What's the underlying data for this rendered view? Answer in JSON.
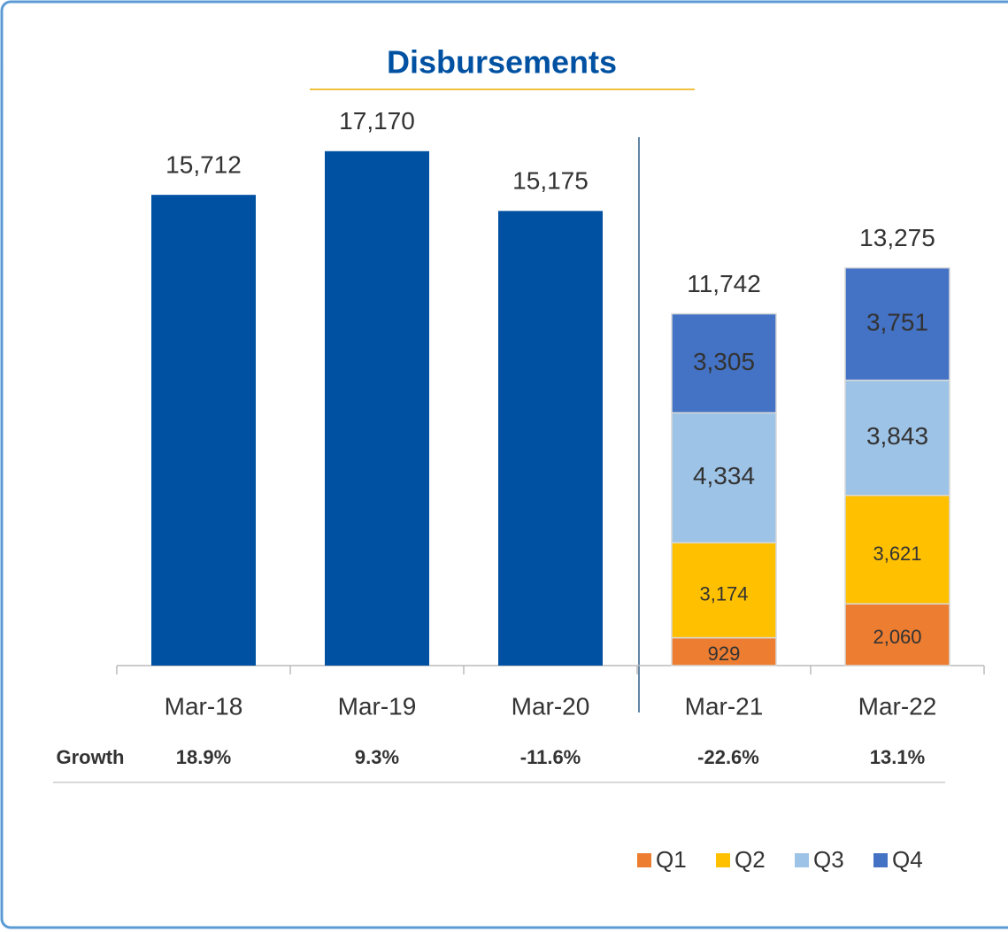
{
  "chart_data": {
    "type": "bar",
    "title": "Disbursements",
    "categories": [
      "Mar-18",
      "Mar-19",
      "Mar-20",
      "Mar-21",
      "Mar-22"
    ],
    "totals": [
      15712,
      17170,
      15175,
      11742,
      13275
    ],
    "totals_labels": [
      "15,712",
      "17,170",
      "15,175",
      "11,742",
      "13,275"
    ],
    "total_color": "#0051a2",
    "series": [
      {
        "name": "Q1",
        "color": "#ed7d31",
        "values": [
          null,
          null,
          null,
          929,
          2060
        ],
        "value_labels": [
          null,
          null,
          null,
          "929",
          "2,060"
        ]
      },
      {
        "name": "Q2",
        "color": "#ffc000",
        "values": [
          null,
          null,
          null,
          3174,
          3621
        ],
        "value_labels": [
          null,
          null,
          null,
          "3,174",
          "3,621"
        ]
      },
      {
        "name": "Q3",
        "color": "#9dc3e6",
        "values": [
          null,
          null,
          null,
          4334,
          3843
        ],
        "value_labels": [
          null,
          null,
          null,
          "4,334",
          "3,843"
        ]
      },
      {
        "name": "Q4",
        "color": "#4472c4",
        "values": [
          null,
          null,
          null,
          3305,
          3751
        ],
        "value_labels": [
          null,
          null,
          null,
          "3,305",
          "3,751"
        ]
      }
    ],
    "ylim": [
      0,
      20000
    ],
    "growth": {
      "label": "Growth",
      "values": [
        "18.9%",
        "9.3%",
        "-11.6%",
        "-22.6%",
        "13.1%"
      ]
    },
    "legend": "bottom-right"
  }
}
